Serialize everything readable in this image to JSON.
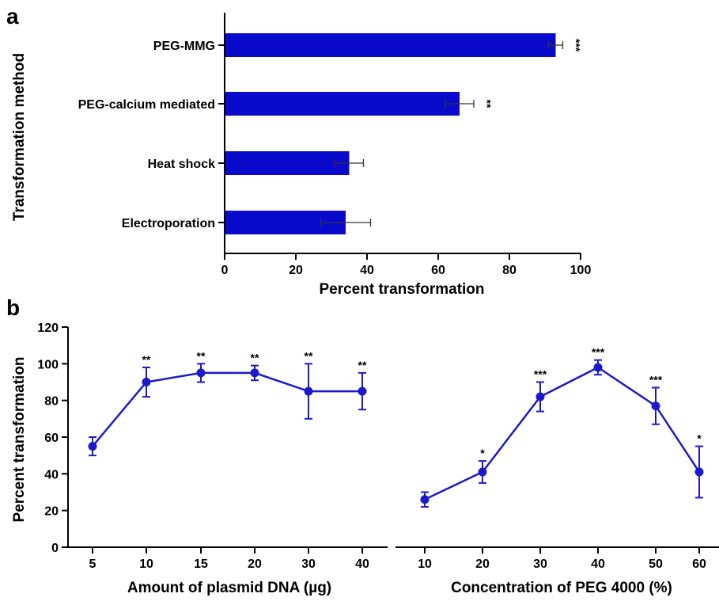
{
  "panels": {
    "a": "a",
    "b": "b"
  },
  "chart_data": [
    {
      "type": "bar",
      "orientation": "horizontal",
      "ylabel": "Transformation method",
      "xlabel": "Percent transformation",
      "categories": [
        "PEG-MMG",
        "PEG-calcium mediated",
        "Heat shock",
        "Electroporation"
      ],
      "values": [
        93,
        66,
        35,
        34
      ],
      "errors": [
        2,
        4,
        4,
        7
      ],
      "significance": [
        "***",
        "**",
        "",
        ""
      ],
      "xlim": [
        0,
        100
      ],
      "xticks": [
        0,
        20,
        40,
        60,
        80,
        100
      ],
      "color": "#0a0acc"
    },
    {
      "type": "line",
      "xlabel": "Amount of plasmid DNA (µg)",
      "ylabel": "Percent transformation",
      "categories": [
        "5",
        "10",
        "15",
        "20",
        "30",
        "40"
      ],
      "values": [
        55,
        90,
        95,
        95,
        85,
        85
      ],
      "errors": [
        5,
        8,
        5,
        4,
        15,
        10
      ],
      "significance": [
        "",
        "**",
        "**",
        "**",
        "**",
        "**"
      ],
      "ylim": [
        0,
        120
      ],
      "yticks": [
        0,
        20,
        40,
        60,
        80,
        100,
        120
      ],
      "color": "#1a1acc"
    },
    {
      "type": "line",
      "xlabel": "Concentration of PEG 4000 (%)",
      "categories": [
        "10",
        "20",
        "30",
        "40",
        "50",
        "60"
      ],
      "values": [
        26,
        41,
        82,
        98,
        77,
        41
      ],
      "errors": [
        4,
        6,
        8,
        4,
        10,
        14
      ],
      "significance": [
        "",
        "*",
        "***",
        "***",
        "***",
        "*"
      ],
      "ylim": [
        0,
        120
      ],
      "color": "#1a1acc"
    }
  ]
}
